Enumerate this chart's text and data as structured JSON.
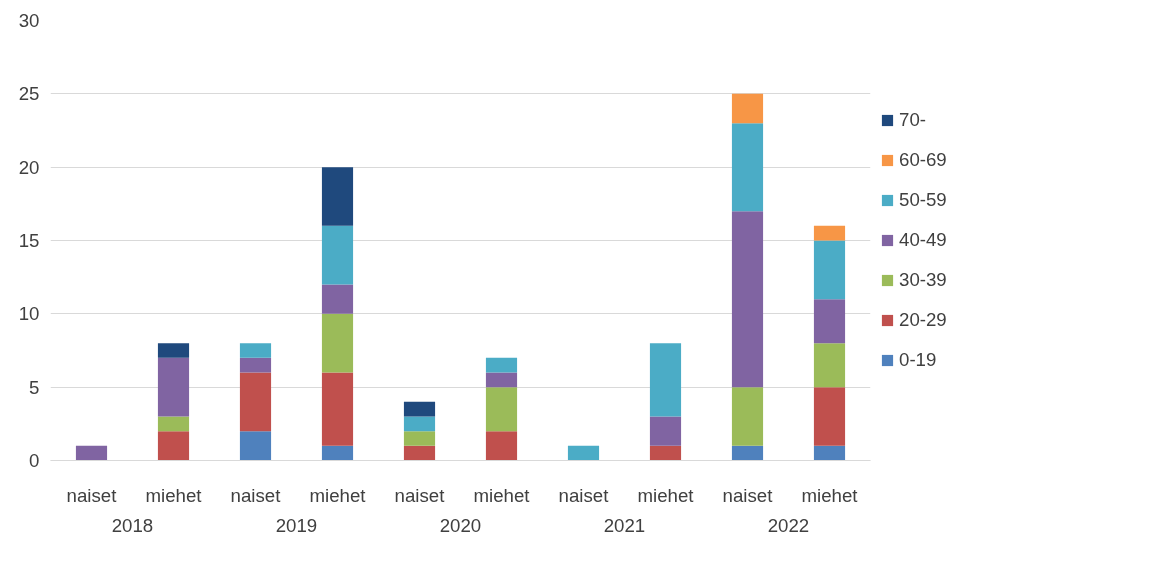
{
  "chart_data": {
    "type": "bar",
    "stacked": true,
    "categories": [
      "naiset",
      "miehet",
      "naiset",
      "miehet",
      "naiset",
      "miehet",
      "naiset",
      "miehet",
      "naiset",
      "miehet"
    ],
    "annotations": [
      "2018",
      "2019",
      "2020",
      "2021",
      "2022"
    ],
    "series": [
      {
        "name": "0-19",
        "color": "#4f81bd",
        "values": [
          null,
          null,
          2,
          1,
          null,
          null,
          null,
          null,
          1,
          1
        ]
      },
      {
        "name": "20-29",
        "color": "#c0504d",
        "values": [
          null,
          2,
          4,
          5,
          1,
          2,
          null,
          1,
          null,
          4
        ]
      },
      {
        "name": "30-39",
        "color": "#9bbb59",
        "values": [
          null,
          1,
          null,
          4,
          1,
          3,
          null,
          null,
          4,
          3
        ]
      },
      {
        "name": "40-49",
        "color": "#8064a2",
        "values": [
          1,
          4,
          1,
          2,
          null,
          1,
          null,
          2,
          12,
          3
        ]
      },
      {
        "name": "50-59",
        "color": "#4bacc6",
        "values": [
          null,
          null,
          1,
          4,
          1,
          1,
          1,
          5,
          6,
          4
        ]
      },
      {
        "name": "60-69",
        "color": "#f79646",
        "values": [
          null,
          null,
          null,
          null,
          null,
          null,
          null,
          null,
          2,
          1
        ]
      },
      {
        "name": "70-",
        "color": "#1f497d",
        "values": [
          null,
          1,
          null,
          4,
          1,
          null,
          null,
          null,
          null,
          null
        ]
      }
    ],
    "ylim": [
      0,
      30
    ],
    "yticks": [
      0,
      5,
      10,
      15,
      20,
      25,
      30
    ],
    "grid": "y",
    "legend": "right"
  }
}
